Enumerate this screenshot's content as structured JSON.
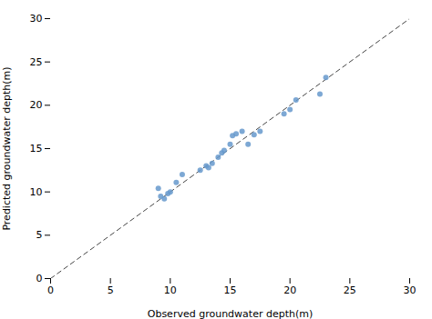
{
  "chart_data": {
    "type": "scatter",
    "xlabel": "Observed groundwater depth(m)",
    "ylabel": "Predicted groundwater depth(m)",
    "xlim": [
      0,
      30
    ],
    "ylim": [
      0,
      30
    ],
    "xticks": [
      0,
      5,
      10,
      15,
      20,
      25,
      30
    ],
    "yticks": [
      0,
      5,
      10,
      15,
      20,
      25,
      30
    ],
    "grid": false,
    "series": [
      {
        "type": "line",
        "line_style": "dashed",
        "color": "#444444",
        "x": [
          0,
          30
        ],
        "values": [
          0,
          30
        ]
      },
      {
        "type": "scatter",
        "marker": "circle",
        "color": "#6699cc",
        "x": [
          9.0,
          9.2,
          9.5,
          9.8,
          10.0,
          10.5,
          11.0,
          12.5,
          13.0,
          13.2,
          13.5,
          14.0,
          14.3,
          14.5,
          15.0,
          15.2,
          15.5,
          16.0,
          16.5,
          17.0,
          17.5,
          19.5,
          20.0,
          20.5,
          22.5,
          23.0
        ],
        "values": [
          10.4,
          9.5,
          9.2,
          9.8,
          10.0,
          11.1,
          12.0,
          12.5,
          13.0,
          12.8,
          13.3,
          14.0,
          14.5,
          14.8,
          15.5,
          16.5,
          16.7,
          17.0,
          15.5,
          16.6,
          17.0,
          19.0,
          19.5,
          20.6,
          21.3,
          23.2
        ]
      }
    ]
  }
}
